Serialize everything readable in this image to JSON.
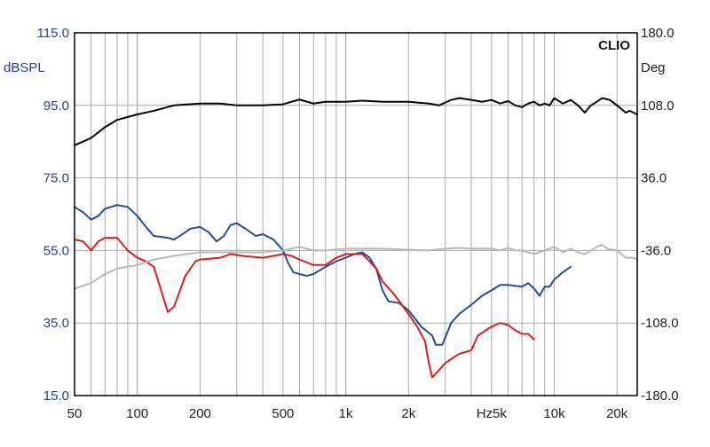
{
  "chart_data": {
    "type": "line",
    "title": "",
    "brand": "CLIO",
    "xscale": "log",
    "xlim": [
      50,
      25000
    ],
    "x_ticks": [
      {
        "value": 50,
        "label": "50"
      },
      {
        "value": 100,
        "label": "100"
      },
      {
        "value": 200,
        "label": "200"
      },
      {
        "value": 500,
        "label": "500"
      },
      {
        "value": 1000,
        "label": "1k"
      },
      {
        "value": 2000,
        "label": "2k"
      },
      {
        "value": 5000,
        "label": "Hz5k"
      },
      {
        "value": 10000,
        "label": "10k"
      },
      {
        "value": 20000,
        "label": "20k"
      }
    ],
    "y_left": {
      "unit_label": "dBSPL",
      "lim": [
        15,
        115
      ],
      "ticks": [
        "115.0",
        "95.0",
        "75.0",
        "55.0",
        "35.0",
        "15.0"
      ]
    },
    "y_right": {
      "unit_label": "Deg",
      "lim": [
        -180,
        180
      ],
      "ticks": [
        "180.0",
        "108.0",
        "36.0",
        "-36.0",
        "-108.0",
        "-180.0"
      ]
    },
    "grid": true,
    "colors": {
      "black": "#000000",
      "blue": "#2b4a96",
      "red": "#d42020",
      "gray": "#b8b8b8",
      "grid": "#a8a8a8",
      "left_ticks": "#2b3d8f"
    },
    "series": [
      {
        "color": "black",
        "axis": "left",
        "points": [
          [
            50,
            84
          ],
          [
            60,
            86
          ],
          [
            70,
            89
          ],
          [
            80,
            91
          ],
          [
            100,
            92.5
          ],
          [
            120,
            93.5
          ],
          [
            150,
            95
          ],
          [
            200,
            95.5
          ],
          [
            250,
            95.5
          ],
          [
            300,
            95
          ],
          [
            400,
            95
          ],
          [
            500,
            95.3
          ],
          [
            550,
            96
          ],
          [
            600,
            96.6
          ],
          [
            700,
            95.5
          ],
          [
            800,
            96
          ],
          [
            1000,
            96
          ],
          [
            1200,
            96.3
          ],
          [
            1500,
            96
          ],
          [
            2000,
            96
          ],
          [
            2500,
            95.5
          ],
          [
            2800,
            95
          ],
          [
            3200,
            96.5
          ],
          [
            3500,
            97
          ],
          [
            4000,
            96.5
          ],
          [
            4500,
            96
          ],
          [
            5000,
            96.5
          ],
          [
            5500,
            95.5
          ],
          [
            6000,
            96.2
          ],
          [
            6500,
            95
          ],
          [
            7000,
            94.5
          ],
          [
            7500,
            95.5
          ],
          [
            8000,
            96
          ],
          [
            8500,
            95
          ],
          [
            9000,
            95.5
          ],
          [
            9500,
            95
          ],
          [
            10000,
            97
          ],
          [
            11000,
            95.5
          ],
          [
            12000,
            96.5
          ],
          [
            13000,
            95
          ],
          [
            14000,
            93
          ],
          [
            15000,
            95
          ],
          [
            16000,
            96
          ],
          [
            17000,
            97
          ],
          [
            18500,
            96.5
          ],
          [
            20000,
            95
          ],
          [
            21000,
            94
          ],
          [
            22000,
            93
          ],
          [
            23000,
            93.5
          ],
          [
            24000,
            93
          ],
          [
            25000,
            92.5
          ]
        ]
      },
      {
        "color": "blue",
        "axis": "left",
        "points": [
          [
            50,
            67
          ],
          [
            55,
            65.5
          ],
          [
            60,
            63.5
          ],
          [
            65,
            64.5
          ],
          [
            70,
            66.5
          ],
          [
            80,
            67.5
          ],
          [
            90,
            67
          ],
          [
            100,
            64.5
          ],
          [
            110,
            61.5
          ],
          [
            120,
            59
          ],
          [
            140,
            58.5
          ],
          [
            150,
            58
          ],
          [
            160,
            59
          ],
          [
            180,
            61
          ],
          [
            200,
            61.5
          ],
          [
            220,
            60
          ],
          [
            240,
            57.5
          ],
          [
            260,
            59
          ],
          [
            280,
            62
          ],
          [
            300,
            62.5
          ],
          [
            330,
            61
          ],
          [
            370,
            59
          ],
          [
            400,
            59.5
          ],
          [
            450,
            58
          ],
          [
            500,
            55
          ],
          [
            530,
            51.5
          ],
          [
            560,
            49
          ],
          [
            600,
            48.5
          ],
          [
            650,
            48
          ],
          [
            700,
            48.5
          ],
          [
            800,
            50.5
          ],
          [
            900,
            52
          ],
          [
            1000,
            53
          ],
          [
            1100,
            54
          ],
          [
            1200,
            54.5
          ],
          [
            1300,
            53
          ],
          [
            1400,
            50
          ],
          [
            1500,
            44
          ],
          [
            1600,
            41
          ],
          [
            1800,
            40.5
          ],
          [
            2000,
            38.5
          ],
          [
            2300,
            34
          ],
          [
            2600,
            31.5
          ],
          [
            2700,
            29
          ],
          [
            2900,
            29
          ],
          [
            3000,
            31
          ],
          [
            3200,
            35
          ],
          [
            3500,
            37.5
          ],
          [
            4000,
            40
          ],
          [
            4500,
            42.5
          ],
          [
            5000,
            44
          ],
          [
            5500,
            45.5
          ],
          [
            6000,
            45.5
          ],
          [
            7000,
            45
          ],
          [
            7500,
            46
          ],
          [
            8000,
            44.5
          ],
          [
            8500,
            42.5
          ],
          [
            9000,
            45
          ],
          [
            9500,
            45
          ],
          [
            10000,
            47
          ],
          [
            11000,
            49
          ],
          [
            12000,
            50.5
          ]
        ]
      },
      {
        "color": "red",
        "axis": "left",
        "points": [
          [
            50,
            58
          ],
          [
            55,
            57.5
          ],
          [
            60,
            55
          ],
          [
            65,
            57.5
          ],
          [
            70,
            58.5
          ],
          [
            80,
            58.5
          ],
          [
            90,
            55
          ],
          [
            100,
            53
          ],
          [
            110,
            52
          ],
          [
            120,
            50.5
          ],
          [
            130,
            44
          ],
          [
            140,
            38
          ],
          [
            150,
            39.5
          ],
          [
            170,
            48
          ],
          [
            190,
            52
          ],
          [
            200,
            52.5
          ],
          [
            250,
            53
          ],
          [
            280,
            54
          ],
          [
            320,
            53.5
          ],
          [
            400,
            53
          ],
          [
            450,
            53.5
          ],
          [
            500,
            54
          ],
          [
            550,
            53.5
          ],
          [
            600,
            52.5
          ],
          [
            700,
            51
          ],
          [
            800,
            51
          ],
          [
            900,
            53
          ],
          [
            1000,
            54
          ],
          [
            1200,
            54
          ],
          [
            1300,
            52
          ],
          [
            1400,
            50
          ],
          [
            1500,
            46.5
          ],
          [
            1700,
            43
          ],
          [
            2000,
            37.5
          ],
          [
            2200,
            34
          ],
          [
            2400,
            30
          ],
          [
            2500,
            24
          ],
          [
            2600,
            20
          ],
          [
            2800,
            22
          ],
          [
            3000,
            24
          ],
          [
            3500,
            26.5
          ],
          [
            4000,
            27.5
          ],
          [
            4300,
            31.5
          ],
          [
            4700,
            33
          ],
          [
            5000,
            34
          ],
          [
            5500,
            35
          ],
          [
            6000,
            34.5
          ],
          [
            6500,
            33
          ],
          [
            7000,
            32
          ],
          [
            7500,
            32
          ],
          [
            8000,
            30.5
          ]
        ]
      },
      {
        "color": "gray",
        "axis": "left",
        "points": [
          [
            50,
            44.5
          ],
          [
            60,
            46
          ],
          [
            70,
            48.5
          ],
          [
            80,
            50
          ],
          [
            100,
            51
          ],
          [
            120,
            52.5
          ],
          [
            150,
            53.5
          ],
          [
            200,
            54.5
          ],
          [
            250,
            54.5
          ],
          [
            300,
            54.5
          ],
          [
            400,
            54.5
          ],
          [
            500,
            55
          ],
          [
            550,
            55.5
          ],
          [
            600,
            56
          ],
          [
            700,
            55
          ],
          [
            800,
            55
          ],
          [
            1000,
            55.5
          ],
          [
            1200,
            55.5
          ],
          [
            1500,
            55.5
          ],
          [
            2000,
            55.2
          ],
          [
            2500,
            55
          ],
          [
            3000,
            55.5
          ],
          [
            3500,
            55.7
          ],
          [
            4000,
            55.5
          ],
          [
            5000,
            55.5
          ],
          [
            5500,
            55
          ],
          [
            6000,
            55.7
          ],
          [
            6500,
            55
          ],
          [
            7000,
            55
          ],
          [
            8000,
            54
          ],
          [
            9000,
            55
          ],
          [
            10000,
            56
          ],
          [
            11000,
            54.5
          ],
          [
            12000,
            55.5
          ],
          [
            13000,
            54.5
          ],
          [
            14000,
            54
          ],
          [
            15000,
            55
          ],
          [
            16000,
            56
          ],
          [
            17000,
            56.5
          ],
          [
            18000,
            55.5
          ],
          [
            20000,
            55
          ],
          [
            21000,
            54
          ],
          [
            22000,
            53
          ],
          [
            24000,
            53
          ],
          [
            25000,
            52.5
          ]
        ]
      }
    ]
  }
}
